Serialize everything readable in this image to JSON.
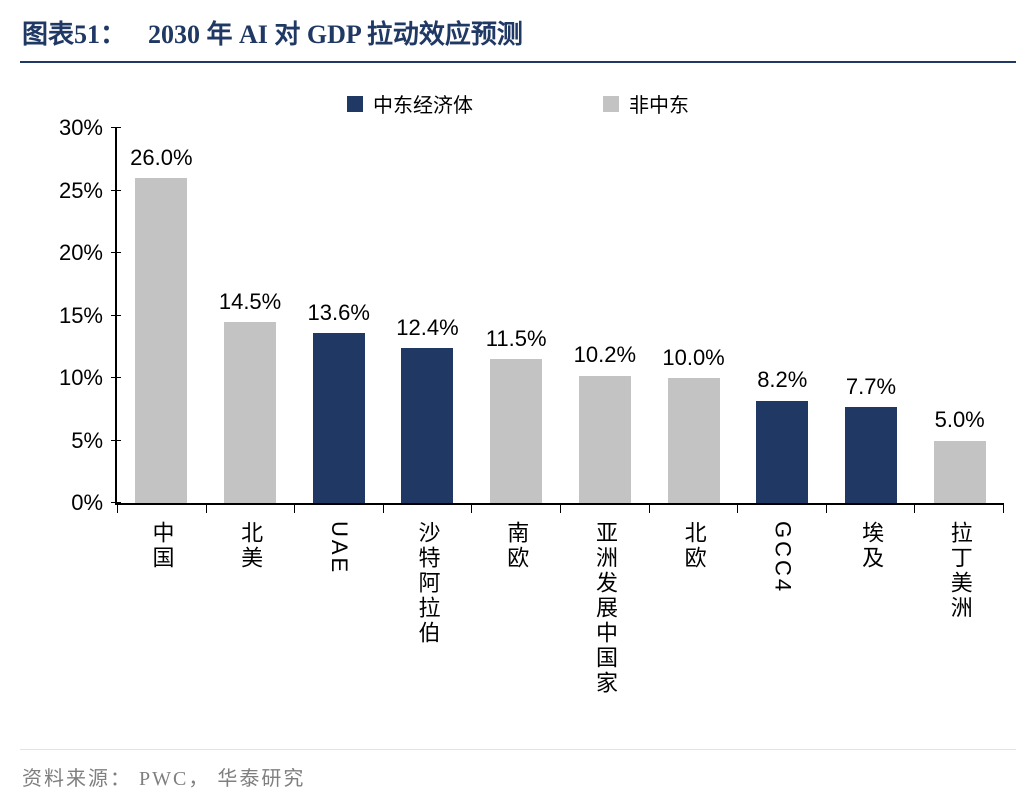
{
  "header": {
    "figure_label": "图表51：",
    "title": "2030 年 AI 对 GDP 拉动效应预测"
  },
  "chart_data": {
    "type": "bar",
    "title": "2030 年 AI 对 GDP 拉动效应预测",
    "categories": [
      "中国",
      "北美",
      "UAE",
      "沙特阿拉伯",
      "南欧",
      "亚洲发展中国家",
      "北欧",
      "GCC4",
      "埃及",
      "拉丁美洲"
    ],
    "values": [
      26.0,
      14.5,
      13.6,
      12.4,
      11.5,
      10.2,
      10.0,
      8.2,
      7.7,
      5.0
    ],
    "value_labels": [
      "26.0%",
      "14.5%",
      "13.6%",
      "12.4%",
      "11.5%",
      "10.2%",
      "10.0%",
      "8.2%",
      "7.7%",
      "5.0%"
    ],
    "group_index": [
      1,
      1,
      0,
      0,
      1,
      1,
      1,
      0,
      0,
      1
    ],
    "legend": [
      {
        "label": "中东经济体",
        "color": "#1F3864"
      },
      {
        "label": "非中东",
        "color": "#C3C3C3"
      }
    ],
    "legend_position": "top-center",
    "grid": false,
    "ylim": [
      0,
      30
    ],
    "yticks": [
      {
        "value": 30,
        "label": "30%"
      },
      {
        "value": 25,
        "label": "25%"
      },
      {
        "value": 20,
        "label": "20%"
      },
      {
        "value": 15,
        "label": "15%"
      },
      {
        "value": 10,
        "label": "10%"
      },
      {
        "value": 5,
        "label": "5%"
      },
      {
        "value": 0,
        "label": "0%"
      }
    ]
  },
  "footer": {
    "source": "资料来源： PWC， 华泰研究"
  }
}
